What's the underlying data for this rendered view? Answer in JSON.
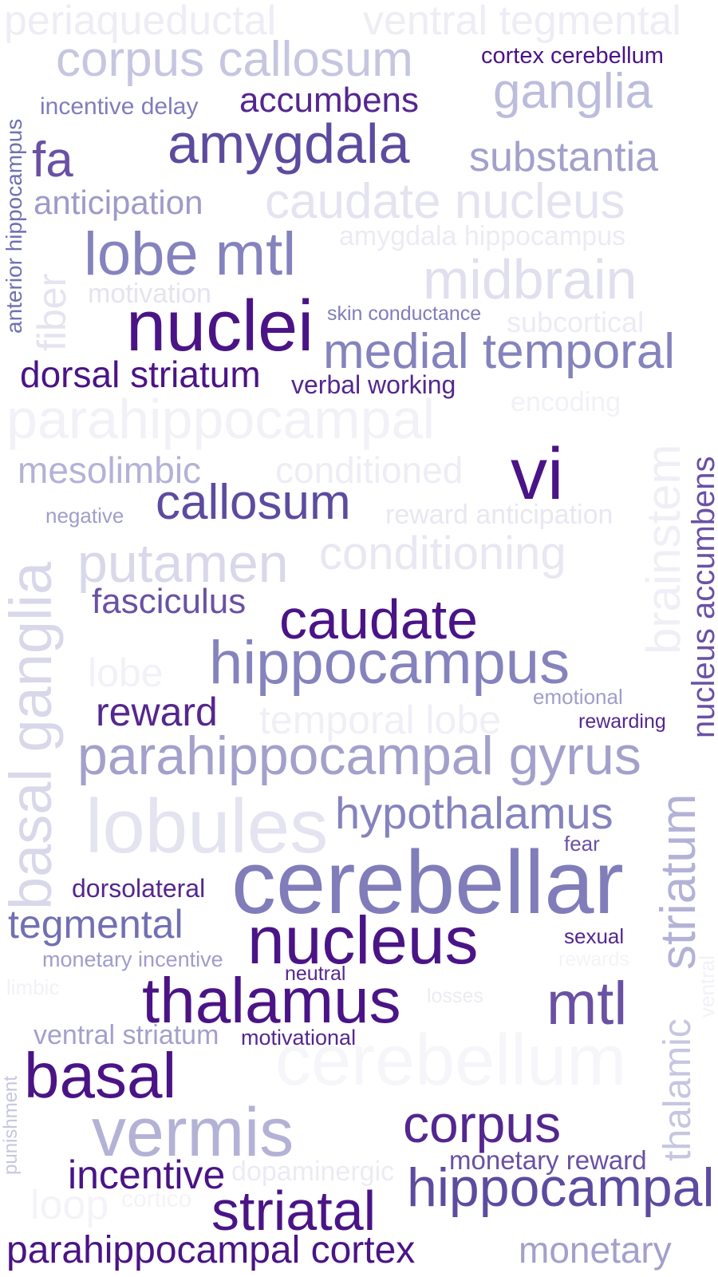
{
  "words": [
    {
      "text": "periaqueductal",
      "color": "#eeedf5",
      "weight": 1
    },
    {
      "text": "ventral tegmental",
      "color": "#eeedf5",
      "weight": 1
    },
    {
      "text": "corpus callosum",
      "color": "#c6c6e1",
      "weight": 4
    },
    {
      "text": "cortex cerebellum",
      "color": "#4a1486",
      "weight": 2
    },
    {
      "text": "ganglia",
      "color": "#bcbddc",
      "weight": 4
    },
    {
      "text": "incentive delay",
      "color": "#807dba",
      "weight": 2
    },
    {
      "text": "accumbens",
      "color": "#54278f",
      "weight": 3
    },
    {
      "text": "amygdala",
      "color": "#5d4b9f",
      "weight": 5
    },
    {
      "text": "fa",
      "color": "#6a51a3",
      "weight": 4
    },
    {
      "text": "substantia",
      "color": "#a3a0cb",
      "weight": 4
    },
    {
      "text": "anticipation",
      "color": "#9e9ac8",
      "weight": 3
    },
    {
      "text": "caudate nucleus",
      "color": "#e4e3f0",
      "weight": 4
    },
    {
      "text": "amygdala hippocampus",
      "color": "#ecebf4",
      "weight": 2
    },
    {
      "text": "lobe mtl",
      "color": "#8583bd",
      "weight": 5
    },
    {
      "text": "midbrain",
      "color": "#e0dfee",
      "weight": 5
    },
    {
      "text": "motivation",
      "color": "#e4e3f0",
      "weight": 2
    },
    {
      "text": "nuclei",
      "color": "#4a1486",
      "weight": 6
    },
    {
      "text": "skin conductance",
      "color": "#807dba",
      "weight": 1
    },
    {
      "text": "subcortical",
      "color": "#ecebf4",
      "weight": 2
    },
    {
      "text": "medial temporal",
      "color": "#8583bd",
      "weight": 4
    },
    {
      "text": "dorsal striatum",
      "color": "#4a1486",
      "weight": 3
    },
    {
      "text": "verbal working",
      "color": "#54278f",
      "weight": 2
    },
    {
      "text": "encoding",
      "color": "#f2f1f7",
      "weight": 2
    },
    {
      "text": "parahippocampal",
      "color": "#f2f1f7",
      "weight": 5
    },
    {
      "text": "mesolimbic",
      "color": "#b3b2d6",
      "weight": 3
    },
    {
      "text": "conditioned",
      "color": "#eeedf5",
      "weight": 3
    },
    {
      "text": "vi",
      "color": "#4a1486",
      "weight": 6
    },
    {
      "text": "negative",
      "color": "#a09dca",
      "weight": 1
    },
    {
      "text": "callosum",
      "color": "#5d4b9f",
      "weight": 4
    },
    {
      "text": "reward anticipation",
      "color": "#e8e7f2",
      "weight": 2
    },
    {
      "text": "putamen",
      "color": "#d9d8ea",
      "weight": 5
    },
    {
      "text": "conditioning",
      "color": "#e8e7f2",
      "weight": 4
    },
    {
      "text": "fasciculus",
      "color": "#6a51a3",
      "weight": 3
    },
    {
      "text": "caudate",
      "color": "#4a1486",
      "weight": 5
    },
    {
      "text": "hippocampus",
      "color": "#8583bd",
      "weight": 5
    },
    {
      "text": "lobe",
      "color": "#f2f1f7",
      "weight": 3
    },
    {
      "text": "reward",
      "color": "#54278f",
      "weight": 3
    },
    {
      "text": "emotional",
      "color": "#a09dca",
      "weight": 1
    },
    {
      "text": "temporal lobe",
      "color": "#f0eff6",
      "weight": 3
    },
    {
      "text": "rewarding",
      "color": "#54278f",
      "weight": 1
    },
    {
      "text": "parahippocampal gyrus",
      "color": "#a3a0cb",
      "weight": 5
    },
    {
      "text": "lobules",
      "color": "#e4e3f0",
      "weight": 6
    },
    {
      "text": "hypothalamus",
      "color": "#8583bd",
      "weight": 4
    },
    {
      "text": "fear",
      "color": "#6a51a3",
      "weight": 1
    },
    {
      "text": "cerebellar",
      "color": "#807dba",
      "weight": 7
    },
    {
      "text": "dorsolateral",
      "color": "#54278f",
      "weight": 2
    },
    {
      "text": "tegmental",
      "color": "#7270b2",
      "weight": 4
    },
    {
      "text": "nucleus",
      "color": "#4a1486",
      "weight": 6
    },
    {
      "text": "sexual",
      "color": "#54278f",
      "weight": 1
    },
    {
      "text": "monetary incentive",
      "color": "#a09dca",
      "weight": 2
    },
    {
      "text": "rewards",
      "color": "#f4f3f8",
      "weight": 1
    },
    {
      "text": "limbic",
      "color": "#f2f1f7",
      "weight": 1
    },
    {
      "text": "neutral",
      "color": "#54278f",
      "weight": 1
    },
    {
      "text": "thalamus",
      "color": "#4a1486",
      "weight": 6
    },
    {
      "text": "losses",
      "color": "#ecebf4",
      "weight": 1
    },
    {
      "text": "mtl",
      "color": "#6a51a3",
      "weight": 5
    },
    {
      "text": "ventral striatum",
      "color": "#a3a0cb",
      "weight": 2
    },
    {
      "text": "motivational",
      "color": "#54278f",
      "weight": 1
    },
    {
      "text": "cerebellum",
      "color": "#f6f5f9",
      "weight": 6
    },
    {
      "text": "basal",
      "color": "#4a1486",
      "weight": 6
    },
    {
      "text": "vermis",
      "color": "#b3b2d6",
      "weight": 6
    },
    {
      "text": "corpus",
      "color": "#54278f",
      "weight": 5
    },
    {
      "text": "incentive",
      "color": "#4a1486",
      "weight": 4
    },
    {
      "text": "dopaminergic",
      "color": "#ecebf4",
      "weight": 2
    },
    {
      "text": "monetary reward",
      "color": "#6a51a3",
      "weight": 2
    },
    {
      "text": "loop",
      "color": "#f4f3f8",
      "weight": 3
    },
    {
      "text": "cortico",
      "color": "#f4f3f8",
      "weight": 1
    },
    {
      "text": "striatal",
      "color": "#4a1486",
      "weight": 5
    },
    {
      "text": "hippocampal",
      "color": "#5d4b9f",
      "weight": 5
    },
    {
      "text": "parahippocampal cortex",
      "color": "#4a1486",
      "weight": 4
    },
    {
      "text": "monetary",
      "color": "#a3a0cb",
      "weight": 3
    },
    {
      "text": "anterior hippocampus",
      "color": "#7270b2",
      "weight": 2
    },
    {
      "text": "fiber",
      "color": "#e4e3f0",
      "weight": 3
    },
    {
      "text": "brainstem",
      "color": "#f0eff6",
      "weight": 4
    },
    {
      "text": "nucleus accumbens",
      "color": "#6a51a3",
      "weight": 3
    },
    {
      "text": "basal ganglia",
      "color": "#d9d8ea",
      "weight": 5
    },
    {
      "text": "striatum",
      "color": "#b3b2d6",
      "weight": 5
    },
    {
      "text": "ventral",
      "color": "#f2f1f7",
      "weight": 1
    },
    {
      "text": "thalamic",
      "color": "#c6c6e1",
      "weight": 3
    },
    {
      "text": "punishment",
      "color": "#c6c6e1",
      "weight": 1
    }
  ]
}
